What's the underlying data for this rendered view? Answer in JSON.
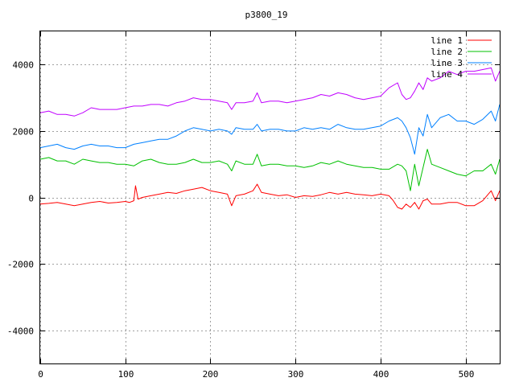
{
  "chart_data": {
    "type": "line",
    "title": "p3800_19",
    "xlabel": "",
    "ylabel": "",
    "xlim": [
      0,
      540
    ],
    "ylim": [
      -5000,
      5000
    ],
    "x_ticks": [
      0,
      100,
      200,
      300,
      400,
      500
    ],
    "y_ticks": [
      -4000,
      -2000,
      0,
      2000,
      4000
    ],
    "x_tick_labels": [
      "0",
      "100",
      "200",
      "300",
      "400",
      "500"
    ],
    "y_tick_labels": [
      "-4000",
      "-2000",
      "0",
      "2000",
      "4000"
    ],
    "grid": true,
    "legend_position": "top-right",
    "series": [
      {
        "name": "line 1",
        "color": "#ff0000",
        "x": [
          0,
          10,
          20,
          30,
          40,
          50,
          60,
          70,
          80,
          90,
          100,
          105,
          110,
          112,
          115,
          120,
          130,
          140,
          150,
          160,
          170,
          180,
          190,
          200,
          210,
          220,
          225,
          230,
          240,
          250,
          255,
          260,
          270,
          280,
          290,
          300,
          310,
          320,
          330,
          340,
          350,
          360,
          370,
          380,
          390,
          400,
          410,
          415,
          420,
          425,
          430,
          435,
          440,
          445,
          450,
          455,
          460,
          470,
          480,
          490,
          500,
          510,
          520,
          530,
          535,
          540
        ],
        "y": [
          -200,
          -180,
          -150,
          -200,
          -250,
          -200,
          -150,
          -120,
          -170,
          -150,
          -120,
          -150,
          -100,
          350,
          -50,
          0,
          50,
          100,
          150,
          120,
          200,
          250,
          300,
          200,
          150,
          100,
          -250,
          50,
          100,
          200,
          400,
          150,
          100,
          50,
          80,
          0,
          50,
          30,
          80,
          150,
          100,
          150,
          100,
          80,
          50,
          100,
          50,
          -100,
          -300,
          -350,
          -200,
          -300,
          -150,
          -350,
          -100,
          -50,
          -200,
          -200,
          -150,
          -150,
          -250,
          -250,
          -100,
          200,
          -100,
          200
        ]
      },
      {
        "name": "line 2",
        "color": "#00c000",
        "x": [
          0,
          10,
          20,
          30,
          40,
          50,
          60,
          70,
          80,
          90,
          100,
          110,
          120,
          130,
          140,
          150,
          160,
          170,
          180,
          190,
          200,
          210,
          220,
          225,
          230,
          240,
          250,
          255,
          260,
          270,
          280,
          290,
          300,
          310,
          320,
          330,
          340,
          350,
          360,
          370,
          380,
          390,
          400,
          410,
          420,
          425,
          430,
          435,
          440,
          445,
          450,
          455,
          460,
          470,
          480,
          490,
          500,
          510,
          520,
          530,
          535,
          540
        ],
        "y": [
          1150,
          1200,
          1100,
          1100,
          1000,
          1150,
          1100,
          1050,
          1050,
          1000,
          1000,
          950,
          1100,
          1150,
          1050,
          1000,
          1000,
          1050,
          1150,
          1050,
          1050,
          1100,
          1000,
          800,
          1100,
          1000,
          1000,
          1300,
          950,
          1000,
          1000,
          950,
          950,
          900,
          950,
          1050,
          1000,
          1100,
          1000,
          950,
          900,
          900,
          850,
          850,
          1000,
          950,
          800,
          200,
          1000,
          350,
          900,
          1450,
          1000,
          900,
          800,
          700,
          650,
          800,
          800,
          1000,
          700,
          1150
        ]
      },
      {
        "name": "line 3",
        "color": "#0080ff",
        "x": [
          0,
          10,
          20,
          30,
          40,
          50,
          60,
          70,
          80,
          90,
          100,
          110,
          120,
          130,
          140,
          150,
          160,
          170,
          180,
          190,
          200,
          210,
          220,
          225,
          230,
          240,
          250,
          255,
          260,
          270,
          280,
          290,
          300,
          310,
          320,
          330,
          340,
          350,
          360,
          370,
          380,
          390,
          400,
          410,
          420,
          425,
          430,
          435,
          440,
          445,
          450,
          455,
          460,
          470,
          480,
          490,
          500,
          510,
          520,
          530,
          535,
          540
        ],
        "y": [
          1500,
          1550,
          1600,
          1500,
          1450,
          1550,
          1600,
          1550,
          1550,
          1500,
          1500,
          1600,
          1650,
          1700,
          1750,
          1750,
          1850,
          2000,
          2100,
          2050,
          2000,
          2050,
          2000,
          1900,
          2100,
          2050,
          2050,
          2200,
          2000,
          2050,
          2050,
          2000,
          2000,
          2100,
          2050,
          2100,
          2050,
          2200,
          2100,
          2050,
          2050,
          2100,
          2150,
          2300,
          2400,
          2300,
          2100,
          1800,
          1300,
          2100,
          1850,
          2500,
          2100,
          2400,
          2500,
          2300,
          2300,
          2200,
          2350,
          2600,
          2300,
          2800
        ]
      },
      {
        "name": "line 4",
        "color": "#c000ff",
        "x": [
          0,
          10,
          20,
          30,
          40,
          50,
          60,
          70,
          80,
          90,
          100,
          110,
          120,
          130,
          140,
          150,
          160,
          170,
          180,
          190,
          200,
          210,
          220,
          225,
          230,
          240,
          250,
          255,
          260,
          270,
          280,
          290,
          300,
          310,
          320,
          330,
          340,
          350,
          360,
          370,
          380,
          390,
          400,
          410,
          420,
          425,
          430,
          435,
          440,
          445,
          450,
          455,
          460,
          470,
          480,
          490,
          500,
          510,
          520,
          530,
          535,
          540
        ],
        "y": [
          2550,
          2600,
          2500,
          2500,
          2450,
          2550,
          2700,
          2650,
          2650,
          2650,
          2700,
          2750,
          2750,
          2800,
          2800,
          2750,
          2850,
          2900,
          3000,
          2950,
          2950,
          2900,
          2850,
          2650,
          2850,
          2850,
          2900,
          3150,
          2850,
          2900,
          2900,
          2850,
          2900,
          2950,
          3000,
          3100,
          3050,
          3150,
          3100,
          3000,
          2950,
          3000,
          3050,
          3300,
          3450,
          3100,
          2950,
          3000,
          3200,
          3450,
          3250,
          3600,
          3500,
          3600,
          3800,
          3700,
          3800,
          3800,
          3850,
          3900,
          3500,
          3800
        ]
      }
    ]
  }
}
